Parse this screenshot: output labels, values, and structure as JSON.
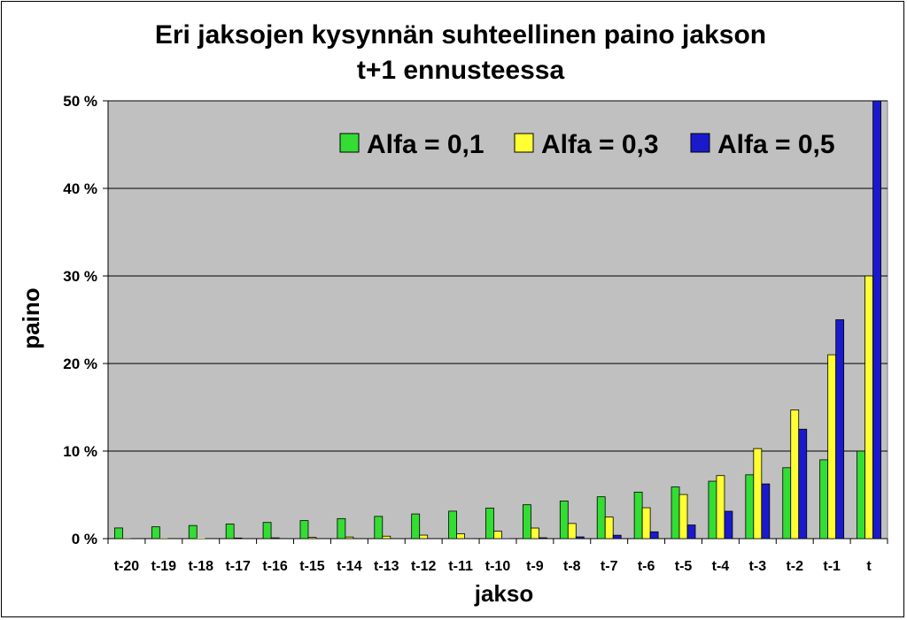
{
  "chart_data": {
    "type": "bar",
    "title": "Eri jaksojen kysynnän suhteellinen paino jakson t+1 ennusteessa",
    "title_lines": [
      "Eri jaksojen kysynnän suhteellinen paino jakson",
      "t+1 ennusteessa"
    ],
    "xlabel": "jakso",
    "ylabel": "paino",
    "ylim": [
      0,
      50
    ],
    "yticks": [
      "0 %",
      "10 %",
      "20 %",
      "30 %",
      "40 %",
      "50 %"
    ],
    "grid": true,
    "legend_position": "top-right",
    "plot_background": "#c0c0c0",
    "categories": [
      "t-20",
      "t-19",
      "t-18",
      "t-17",
      "t-16",
      "t-15",
      "t-14",
      "t-13",
      "t-12",
      "t-11",
      "t-10",
      "t-9",
      "t-8",
      "t-7",
      "t-6",
      "t-5",
      "t-4",
      "t-3",
      "t-2",
      "t-1",
      "t"
    ],
    "series": [
      {
        "name": "Alfa = 0,1",
        "color": "#33dd33",
        "values": [
          1.22,
          1.35,
          1.5,
          1.67,
          1.85,
          2.06,
          2.29,
          2.54,
          2.82,
          3.14,
          3.49,
          3.87,
          4.3,
          4.78,
          5.31,
          5.9,
          6.56,
          7.29,
          8.1,
          9.0,
          10.0
        ]
      },
      {
        "name": "Alfa = 0,3",
        "color": "#ffff33",
        "values": [
          0.02,
          0.03,
          0.05,
          0.07,
          0.09,
          0.14,
          0.19,
          0.28,
          0.4,
          0.56,
          0.85,
          1.21,
          1.73,
          2.47,
          3.53,
          5.04,
          7.2,
          10.29,
          14.7,
          21.0,
          30.0
        ]
      },
      {
        "name": "Alfa = 0,5",
        "color": "#1a1acc",
        "values": [
          0.0,
          0.0,
          0.0,
          0.0,
          0.0,
          0.0,
          0.0,
          0.0,
          0.0,
          0.02,
          0.05,
          0.1,
          0.2,
          0.39,
          0.78,
          1.56,
          3.13,
          6.25,
          12.5,
          25.0,
          50.0
        ]
      }
    ]
  }
}
